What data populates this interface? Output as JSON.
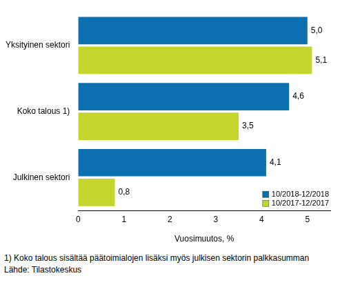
{
  "chart_data": {
    "type": "bar",
    "orientation": "horizontal",
    "categories": [
      "Yksityinen sektori",
      "Koko talous 1)",
      "Julkinen sektori"
    ],
    "series": [
      {
        "name": "10/2018-12/2018",
        "color": "#0b6fb0",
        "values": [
          5.0,
          4.6,
          4.1
        ],
        "value_labels": [
          "5,0",
          "4,6",
          "4,1"
        ]
      },
      {
        "name": "10/2017-12/2017",
        "color": "#c4d62e",
        "values": [
          5.1,
          3.5,
          0.8
        ],
        "value_labels": [
          "5,1",
          "3,5",
          "0,8"
        ]
      }
    ],
    "x_label": "Vuosimuutos, %",
    "xlim": [
      0,
      5.5
    ],
    "xticks": [
      0,
      1,
      2,
      3,
      4,
      5
    ],
    "grid": false,
    "legend": "bottom-right",
    "data_labels": true,
    "annotations": [
      "1) Koko talous sisältää päätoimialojen lisäksi myös julkisen sektorin palkkasumman",
      "Lähde: Tilastokeskus"
    ]
  }
}
